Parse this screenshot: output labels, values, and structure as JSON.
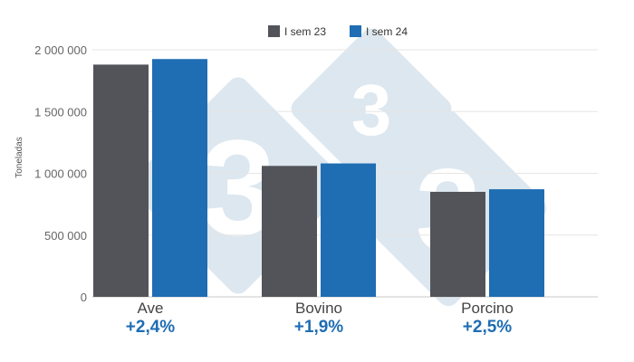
{
  "chart_data": {
    "type": "bar",
    "categories": [
      "Ave",
      "Bovino",
      "Porcino"
    ],
    "series": [
      {
        "name": "I sem 23",
        "color": "#525459",
        "values": [
          1880000,
          1060000,
          850000
        ]
      },
      {
        "name": "I sem 24",
        "color": "#1f6db3",
        "values": [
          1925000,
          1080000,
          871000
        ]
      }
    ],
    "changes": [
      "+2,4%",
      "+1,9%",
      "+2,5%"
    ],
    "change_color": "#1f6db3",
    "ylabel": "Toneladas",
    "ylim": [
      0,
      2000000
    ],
    "y_ticks": [
      0,
      500000,
      1000000,
      1500000,
      2000000
    ],
    "y_tick_labels": [
      "0",
      "500 000",
      "1 000 000",
      "1 500 000",
      "2 000 000"
    ],
    "grid": true,
    "legend_position": "top-center",
    "watermark": "3tres3 logo",
    "watermark_text": "3"
  }
}
